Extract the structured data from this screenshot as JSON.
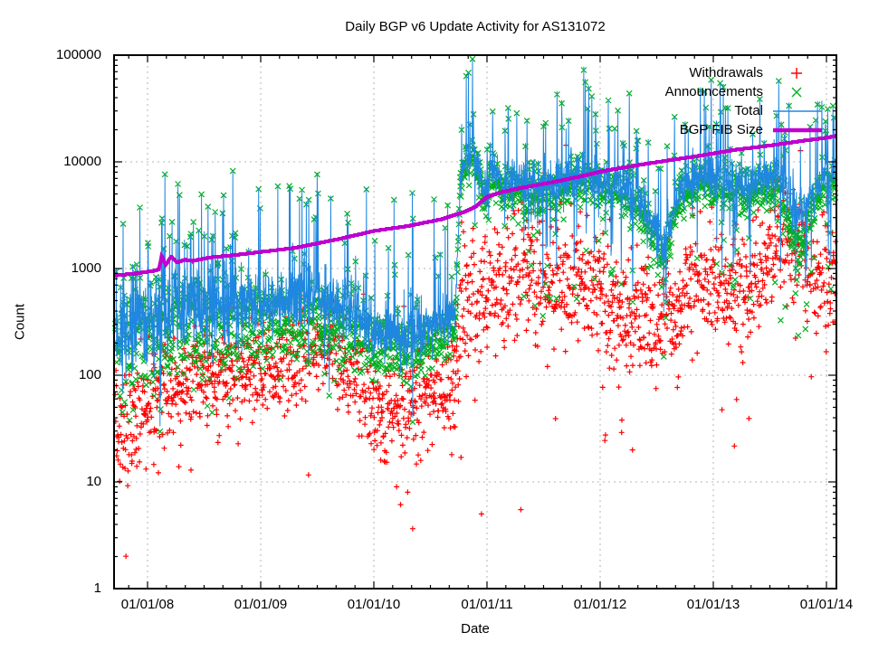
{
  "chart_data": {
    "type": "line+scatter",
    "title": "Daily BGP v6 Update Activity for AS131072",
    "xlabel": "Date",
    "ylabel": "Count",
    "x_axis": {
      "tick_labels": [
        "01/01/08",
        "01/01/09",
        "01/01/10",
        "01/01/11",
        "01/01/12",
        "01/01/13",
        "01/01/14"
      ],
      "minor_ticks_per_year": 6,
      "t_min": -0.29,
      "t_max": 6.088
    },
    "y_axis": {
      "scale": "log",
      "min": 1,
      "max": 100000,
      "tick_labels": [
        "1",
        "10",
        "100",
        "1000",
        "10000",
        "100000"
      ]
    },
    "grid": {
      "color": "#b4b4b4",
      "dash": "2,4",
      "shown": true
    },
    "legend": {
      "position": "top-right-inside"
    },
    "seed": 42,
    "series": [
      {
        "name": "withdrawals",
        "label": "Withdrawals",
        "marker": "plus",
        "color": "#ff0000",
        "trend_log10": [
          [
            -0.29,
            1.45
          ],
          [
            0,
            1.75
          ],
          [
            0.4,
            2.0
          ],
          [
            0.9,
            2.05
          ],
          [
            1.3,
            2.15
          ],
          [
            1.55,
            2.35
          ],
          [
            1.75,
            2.1
          ],
          [
            1.95,
            1.85
          ],
          [
            2.15,
            1.6
          ],
          [
            2.35,
            1.75
          ],
          [
            2.6,
            1.95
          ],
          [
            2.72,
            2.0
          ],
          [
            2.8,
            2.7
          ],
          [
            3.0,
            2.75
          ],
          [
            3.2,
            3.0
          ],
          [
            3.45,
            2.95
          ],
          [
            3.6,
            2.8
          ],
          [
            3.75,
            2.95
          ],
          [
            3.95,
            2.8
          ],
          [
            4.15,
            2.55
          ],
          [
            4.45,
            2.4
          ],
          [
            4.6,
            2.5
          ],
          [
            4.8,
            2.8
          ],
          [
            5.1,
            2.8
          ],
          [
            5.35,
            2.85
          ],
          [
            5.6,
            3.35
          ],
          [
            5.8,
            3.1
          ],
          [
            5.95,
            2.9
          ],
          [
            6.09,
            3.0
          ]
        ],
        "sigma_log10": [
          [
            -0.29,
            0.3
          ],
          [
            0.5,
            0.22
          ],
          [
            1.5,
            0.22
          ],
          [
            2.0,
            0.28
          ],
          [
            2.6,
            0.22
          ],
          [
            2.9,
            0.33
          ],
          [
            3.6,
            0.28
          ],
          [
            4.3,
            0.3
          ],
          [
            5.0,
            0.26
          ],
          [
            5.6,
            0.28
          ],
          [
            6.09,
            0.25
          ]
        ],
        "spike": {
          "t_min": 2.8,
          "prob": 0.04,
          "mag": [
            0.35,
            0.75
          ]
        },
        "low_outlier": {
          "prob": 0.012,
          "mag": [
            -1.3,
            -0.7
          ]
        },
        "events": [
          [
            1.71,
            1.15
          ],
          [
            2.2,
            9
          ],
          [
            2.3,
            8
          ],
          [
            2.95,
            5
          ],
          [
            3.05,
            6
          ],
          [
            3.3,
            5.5
          ]
        ],
        "skip_prob": 0.1
      },
      {
        "name": "announcements",
        "label": "Announcements",
        "marker": "cross",
        "color": "#00b020",
        "trend_log10": [
          [
            -0.29,
            2.4
          ],
          [
            0,
            2.45
          ],
          [
            0.5,
            2.5
          ],
          [
            1.0,
            2.5
          ],
          [
            1.4,
            2.55
          ],
          [
            1.8,
            2.45
          ],
          [
            2.0,
            2.3
          ],
          [
            2.3,
            2.25
          ],
          [
            2.55,
            2.35
          ],
          [
            2.72,
            2.45
          ],
          [
            2.76,
            3.75
          ],
          [
            2.82,
            4.0
          ],
          [
            2.9,
            4.05
          ],
          [
            2.97,
            3.6
          ],
          [
            3.05,
            3.9
          ],
          [
            3.15,
            3.75
          ],
          [
            3.35,
            3.7
          ],
          [
            3.6,
            3.75
          ],
          [
            3.85,
            3.85
          ],
          [
            4.0,
            3.8
          ],
          [
            4.3,
            3.65
          ],
          [
            4.45,
            3.4
          ],
          [
            4.55,
            3.05
          ],
          [
            4.7,
            3.65
          ],
          [
            4.9,
            3.8
          ],
          [
            5.1,
            3.75
          ],
          [
            5.3,
            3.7
          ],
          [
            5.55,
            3.8
          ],
          [
            5.75,
            3.15
          ],
          [
            5.88,
            3.6
          ],
          [
            6.0,
            3.85
          ],
          [
            6.09,
            3.8
          ]
        ],
        "sigma_log10": [
          [
            -0.29,
            0.3
          ],
          [
            0.5,
            0.28
          ],
          [
            1.0,
            0.22
          ],
          [
            1.9,
            0.18
          ],
          [
            2.55,
            0.16
          ],
          [
            2.76,
            0.1
          ],
          [
            3.2,
            0.12
          ],
          [
            6.09,
            0.12
          ]
        ],
        "low_outlier": {
          "prob": 0.01,
          "mag": [
            -0.6,
            -0.3
          ]
        }
      },
      {
        "name": "total",
        "label": "Total",
        "marker": "line",
        "color": "#1f87e0",
        "rule": "announcements_plus_withdrawals",
        "spike_early": {
          "t_max": 0.7,
          "prob": 0.12,
          "mag": [
            0.55,
            1.15
          ]
        },
        "spike_pre": {
          "t_max": 2.72,
          "prob": 0.065,
          "mag": [
            0.7,
            1.25
          ]
        },
        "spike_post": {
          "prob": 0.05,
          "mag": [
            0.4,
            1.0
          ]
        },
        "down_post": {
          "t_min": 3.0,
          "prob": 0.05,
          "mag": [
            -1.1,
            -0.45
          ]
        },
        "events": [
          [
            2.85,
            24000
          ],
          [
            2.88,
            30000
          ],
          [
            3.0,
            14000
          ],
          [
            3.16,
            21000
          ],
          [
            3.34,
            15000
          ],
          [
            3.5,
            23000
          ],
          [
            3.62,
            46000
          ],
          [
            3.66,
            38000
          ],
          [
            3.72,
            26000
          ],
          [
            3.855,
            78000
          ],
          [
            3.87,
            60000
          ],
          [
            3.9,
            52000
          ],
          [
            3.96,
            30000
          ],
          [
            4.08,
            22000
          ],
          [
            4.2,
            16000
          ],
          [
            4.33,
            17000
          ],
          [
            4.75,
            24000
          ],
          [
            4.95,
            15000
          ],
          [
            5.25,
            13000
          ],
          [
            5.45,
            16000
          ],
          [
            5.56,
            29000
          ],
          [
            5.6,
            24000
          ],
          [
            5.67,
            36000
          ],
          [
            5.92,
            37000
          ],
          [
            5.99,
            21000
          ]
        ]
      },
      {
        "name": "bgp_fib_size",
        "label": "BGP FIB Size",
        "marker": "thick-line",
        "color": "#bf00cf",
        "points": [
          [
            -0.29,
            860
          ],
          [
            -0.1,
            900
          ],
          [
            0.05,
            950
          ],
          [
            0.1,
            980
          ],
          [
            0.125,
            1320
          ],
          [
            0.16,
            1080
          ],
          [
            0.21,
            1300
          ],
          [
            0.26,
            1140
          ],
          [
            0.33,
            1210
          ],
          [
            0.4,
            1180
          ],
          [
            0.55,
            1270
          ],
          [
            0.75,
            1330
          ],
          [
            1.0,
            1430
          ],
          [
            1.3,
            1560
          ],
          [
            1.7,
            1900
          ],
          [
            2.0,
            2250
          ],
          [
            2.3,
            2500
          ],
          [
            2.6,
            2900
          ],
          [
            2.8,
            3400
          ],
          [
            2.9,
            3800
          ],
          [
            3.0,
            4700
          ],
          [
            3.1,
            5100
          ],
          [
            3.3,
            5700
          ],
          [
            3.6,
            6500
          ],
          [
            3.9,
            7600
          ],
          [
            4.0,
            8100
          ],
          [
            4.3,
            9200
          ],
          [
            4.6,
            10300
          ],
          [
            4.9,
            11500
          ],
          [
            5.2,
            13000
          ],
          [
            5.5,
            14200
          ],
          [
            5.8,
            15800
          ],
          [
            6.0,
            16800
          ],
          [
            6.088,
            17500
          ]
        ]
      }
    ]
  }
}
